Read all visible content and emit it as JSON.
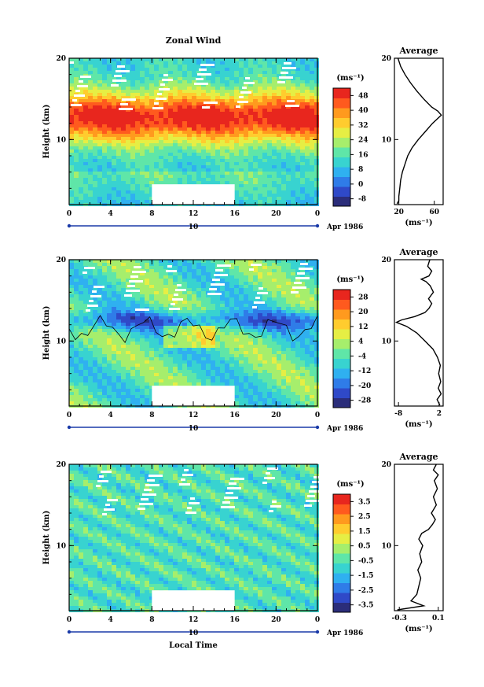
{
  "chart_data": [
    {
      "type": "heatmap",
      "title": "Zonal Wind",
      "ylabel": "Height (km)",
      "y_ticks": [
        "10",
        "20"
      ],
      "ylim": [
        2,
        20
      ],
      "x_ticks": [
        "0",
        "4",
        "8",
        "12",
        "16",
        "20",
        "0"
      ],
      "xlim": [
        0,
        24
      ],
      "date_day": "10",
      "date_label": "Apr 1986",
      "colorbar_unit": "(ms⁻¹)",
      "colorbar_ticks": [
        "48",
        "40",
        "32",
        "24",
        "16",
        "8",
        "0",
        "-8"
      ],
      "colorbar_range": [
        -12,
        52
      ],
      "missing_block": {
        "x": [
          8,
          16
        ],
        "y": [
          2,
          4.5
        ]
      },
      "avg_title": "Average",
      "avg_xlabel": "(ms⁻¹)",
      "avg_x_ticks": [
        "20",
        "60"
      ],
      "avg_y_ticks": [
        "10",
        "20"
      ],
      "avg_xlim": [
        15,
        70
      ],
      "avg_profile": {
        "height": [
          2.1,
          2.5,
          3,
          4,
          5,
          6,
          7,
          8,
          9,
          10,
          11,
          12,
          12.5,
          13,
          13.5,
          14,
          15,
          16,
          17,
          18,
          19,
          20
        ],
        "value": [
          18,
          20,
          20,
          21,
          22,
          24,
          27,
          30,
          35,
          42,
          50,
          58,
          63,
          68,
          64,
          57,
          48,
          40,
          33,
          27,
          22,
          19
        ]
      }
    },
    {
      "type": "heatmap",
      "title": "Meridional Wind",
      "ylabel": "Height (km)",
      "y_ticks": [
        "10",
        "20"
      ],
      "ylim": [
        2,
        20
      ],
      "x_ticks": [
        "0",
        "4",
        "8",
        "12",
        "16",
        "20",
        "0"
      ],
      "xlim": [
        0,
        24
      ],
      "date_day": "10",
      "date_label": "Apr 1986",
      "colorbar_unit": "(ms⁻¹)",
      "colorbar_ticks": [
        "28",
        "20",
        "12",
        "4",
        "-4",
        "-12",
        "-20",
        "-28"
      ],
      "colorbar_range": [
        -32,
        32
      ],
      "missing_block": {
        "x": [
          8,
          16
        ],
        "y": [
          2,
          4.5
        ]
      },
      "avg_title": "Average",
      "avg_xlabel": "(ms⁻¹)",
      "avg_x_ticks": [
        "-8",
        "2"
      ],
      "avg_y_ticks": [
        "10",
        "20"
      ],
      "avg_xlim": [
        -9,
        3
      ],
      "avg_profile": {
        "height": [
          2.1,
          2.8,
          3.5,
          4.2,
          5,
          6,
          7,
          8,
          9,
          10,
          11,
          11.8,
          12.3,
          12.6,
          13,
          13.5,
          14,
          14.6,
          15.2,
          16,
          16.8,
          17.3,
          17.6,
          18,
          18.6,
          19.2,
          20
        ],
        "value": [
          2.2,
          1.5,
          2.5,
          1.8,
          2.4,
          1.9,
          2.3,
          1.6,
          0.5,
          -1.5,
          -3.5,
          -6,
          -8.5,
          -7.2,
          -4,
          -1.5,
          -0.5,
          0.2,
          -0.6,
          0.6,
          -0.2,
          -1.2,
          -2.4,
          -0.5,
          0.2,
          -0.8,
          -0.3
        ]
      }
    },
    {
      "type": "heatmap",
      "title": "Vertical Wind",
      "ylabel": "Height (km)",
      "y_ticks": [
        "10",
        "20"
      ],
      "ylim": [
        2,
        20
      ],
      "x_ticks": [
        "0",
        "4",
        "8",
        "12",
        "16",
        "20",
        "0"
      ],
      "xlim": [
        0,
        24
      ],
      "date_day": "10",
      "date_label": "Apr 1986",
      "xlabel": "Local Time",
      "colorbar_unit": "(ms⁻¹)",
      "colorbar_ticks": [
        "3.5",
        "2.5",
        "1.5",
        "0.5",
        "-0.5",
        "-1.5",
        "-2.5",
        "-3.5"
      ],
      "colorbar_range": [
        -4,
        4
      ],
      "missing_block": {
        "x": [
          8,
          16
        ],
        "y": [
          2,
          4.5
        ]
      },
      "avg_title": "Average",
      "avg_xlabel": "(ms⁻¹)",
      "avg_x_ticks": [
        "-0.3",
        "0.1"
      ],
      "avg_y_ticks": [
        "10",
        "20"
      ],
      "avg_xlim": [
        -0.35,
        0.15
      ],
      "avg_profile": {
        "height": [
          2.1,
          2.6,
          3.2,
          4,
          5,
          6,
          7,
          8,
          9,
          10,
          10.8,
          11.5,
          12,
          12.6,
          13.2,
          14,
          15,
          16,
          17,
          18,
          18.7,
          19.3,
          20
        ],
        "value": [
          -0.32,
          -0.05,
          -0.18,
          -0.12,
          -0.1,
          -0.08,
          -0.11,
          -0.07,
          -0.09,
          -0.06,
          -0.1,
          -0.07,
          0.0,
          0.04,
          0.07,
          0.03,
          0.08,
          0.05,
          0.09,
          0.06,
          0.1,
          0.05,
          0.08
        ]
      }
    }
  ]
}
